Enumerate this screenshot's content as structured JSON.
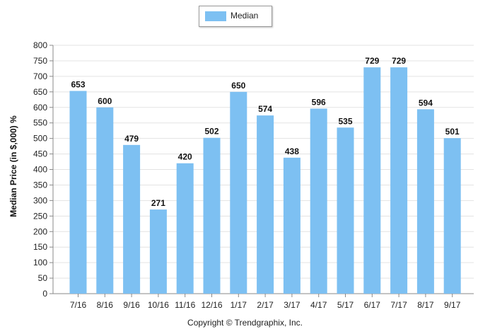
{
  "legend": {
    "label": "Median",
    "color": "#7dc0f2"
  },
  "copyright": "Copyright © Trendgraphix, Inc.",
  "chart_data": {
    "type": "bar",
    "title": "",
    "xlabel": "",
    "ylabel": "Median Price (in $,000) %",
    "ylim": [
      0,
      800
    ],
    "yticks": [
      0,
      50,
      100,
      150,
      200,
      250,
      300,
      350,
      400,
      450,
      500,
      550,
      600,
      650,
      700,
      750,
      800
    ],
    "grid": true,
    "legend_position": "top-center",
    "categories": [
      "7/16",
      "8/16",
      "9/16",
      "10/16",
      "11/16",
      "12/16",
      "1/17",
      "2/17",
      "3/17",
      "4/17",
      "5/17",
      "6/17",
      "7/17",
      "8/17",
      "9/17"
    ],
    "series": [
      {
        "name": "Median",
        "color": "#7dc0f2",
        "values": [
          653,
          600,
          479,
          271,
          420,
          502,
          650,
          574,
          438,
          596,
          535,
          729,
          729,
          594,
          501
        ]
      }
    ]
  }
}
